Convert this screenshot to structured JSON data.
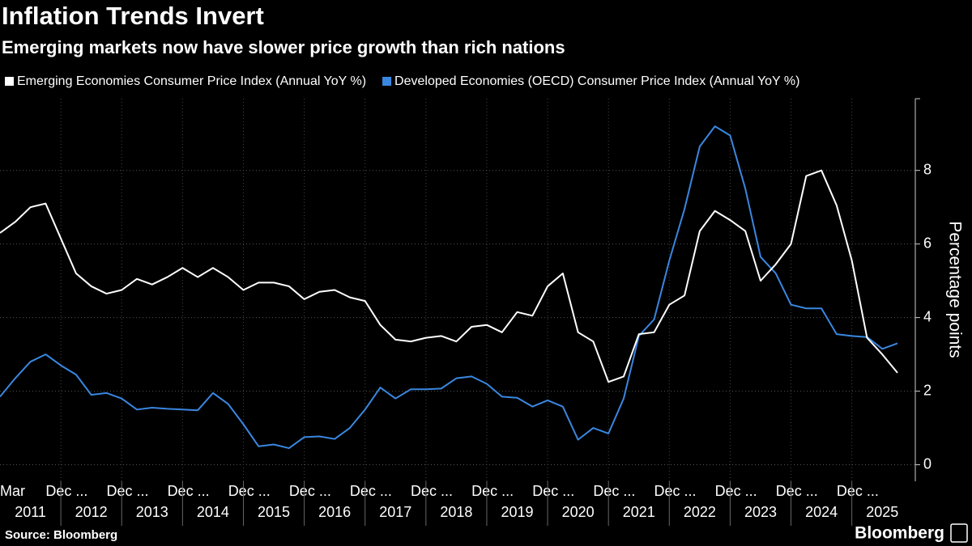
{
  "chart_data": {
    "type": "line",
    "title": "Inflation Trends Invert",
    "subtitle": "Emerging markets now have slower price growth than rich nations",
    "y_label": "Percentage points",
    "source": "Source: Bloomberg",
    "brand": "Bloomberg",
    "categories": [
      {
        "month": "Mar",
        "year": "2011"
      },
      null,
      null,
      {
        "month": "Dec ...",
        "year": "2012"
      },
      null,
      null,
      null,
      {
        "month": "Dec ...",
        "year": "2013"
      },
      null,
      null,
      null,
      {
        "month": "Dec ...",
        "year": "2014"
      },
      null,
      null,
      null,
      {
        "month": "Dec ...",
        "year": "2015"
      },
      null,
      null,
      null,
      {
        "month": "Dec ...",
        "year": "2016"
      },
      null,
      null,
      null,
      {
        "month": "Dec ...",
        "year": "2017"
      },
      null,
      null,
      null,
      {
        "month": "Dec ...",
        "year": "2018"
      },
      null,
      null,
      null,
      {
        "month": "Dec ...",
        "year": "2019"
      },
      null,
      null,
      null,
      {
        "month": "Dec ...",
        "year": "2020"
      },
      null,
      null,
      null,
      {
        "month": "Dec ...",
        "year": "2021"
      },
      null,
      null,
      null,
      {
        "month": "Dec ...",
        "year": "2022"
      },
      null,
      null,
      null,
      {
        "month": "Dec ...",
        "year": "2023"
      },
      null,
      null,
      null,
      {
        "month": "Dec ...",
        "year": "2024"
      },
      null,
      null,
      null,
      {
        "month": "Dec ...",
        "year": "2025"
      },
      null,
      null,
      null,
      null
    ],
    "series": [
      {
        "name": "Emerging Economies Consumer Price Index (Annual YoY %)",
        "color": "#ffffff",
        "values": [
          6.3,
          6.6,
          7.0,
          7.1,
          6.15,
          5.2,
          4.85,
          4.65,
          4.75,
          5.05,
          4.9,
          5.1,
          5.35,
          5.1,
          5.35,
          5.1,
          4.75,
          4.95,
          4.95,
          4.85,
          4.5,
          4.7,
          4.75,
          4.55,
          4.45,
          3.8,
          3.4,
          3.35,
          3.45,
          3.5,
          3.35,
          3.75,
          3.8,
          3.6,
          4.15,
          4.05,
          4.85,
          5.2,
          3.6,
          3.35,
          2.25,
          2.4,
          3.55,
          3.6,
          4.35,
          4.6,
          6.35,
          6.9,
          6.65,
          6.35,
          5.0,
          5.45,
          6.0,
          7.85,
          8.0,
          7.05,
          5.55,
          3.45,
          3.0,
          2.5
        ]
      },
      {
        "name": "Developed Economies (OECD) Consumer Price Index (Annual YoY %)",
        "color": "#3a87e0",
        "values": [
          1.85,
          2.35,
          2.8,
          3.0,
          2.7,
          2.45,
          1.9,
          1.95,
          1.8,
          1.5,
          1.55,
          1.52,
          1.5,
          1.48,
          1.95,
          1.65,
          1.1,
          0.5,
          0.55,
          0.45,
          0.75,
          0.77,
          0.7,
          1.0,
          1.5,
          2.1,
          1.8,
          2.05,
          2.05,
          2.07,
          2.35,
          2.4,
          2.2,
          1.85,
          1.82,
          1.58,
          1.75,
          1.58,
          0.68,
          1.0,
          0.85,
          1.8,
          3.5,
          3.95,
          5.55,
          6.95,
          8.65,
          9.2,
          8.95,
          7.5,
          5.65,
          5.2,
          4.35,
          4.25,
          4.25,
          3.55,
          3.5,
          3.47,
          3.15,
          3.3
        ]
      }
    ],
    "ylim": [
      -0.45,
      9.95
    ],
    "yticks": [
      0,
      2,
      4,
      6,
      8
    ],
    "grid": true
  }
}
